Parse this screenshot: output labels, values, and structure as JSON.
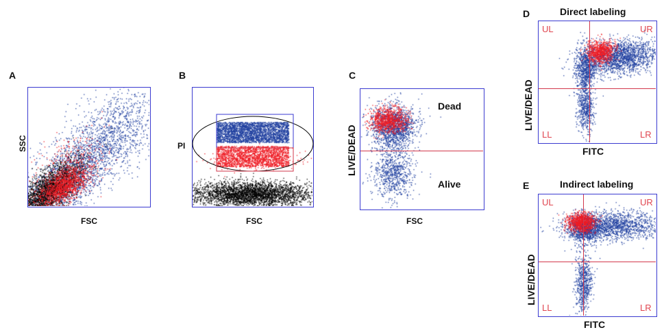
{
  "panels": {
    "A": {
      "letter": "A",
      "xlabel": "FSC",
      "ylabel": "SSC"
    },
    "B": {
      "letter": "B",
      "xlabel": "FSC",
      "ylabel": "PI"
    },
    "C": {
      "letter": "C",
      "xlabel": "FSC",
      "ylabel": "LIVE/DEAD",
      "upper": "Dead",
      "lower": "Alive"
    },
    "D": {
      "letter": "D",
      "title": "Direct labeling",
      "xlabel": "FITC",
      "ylabel": "LIVE/DEAD",
      "quadrants": {
        "ul": "UL",
        "ur": "UR",
        "ll": "LL",
        "lr": "LR"
      }
    },
    "E": {
      "letter": "E",
      "title": "Indirect labeling",
      "xlabel": "FITC",
      "ylabel": "LIVE/DEAD",
      "quadrants": {
        "ul": "UL",
        "ur": "UR",
        "ll": "LL",
        "lr": "LR"
      }
    }
  },
  "colors": {
    "frame": "#3a3ad0",
    "gate": "#d2374b",
    "blue": "#1f3f9f",
    "red": "#ee1c24",
    "black": "#000000"
  }
}
